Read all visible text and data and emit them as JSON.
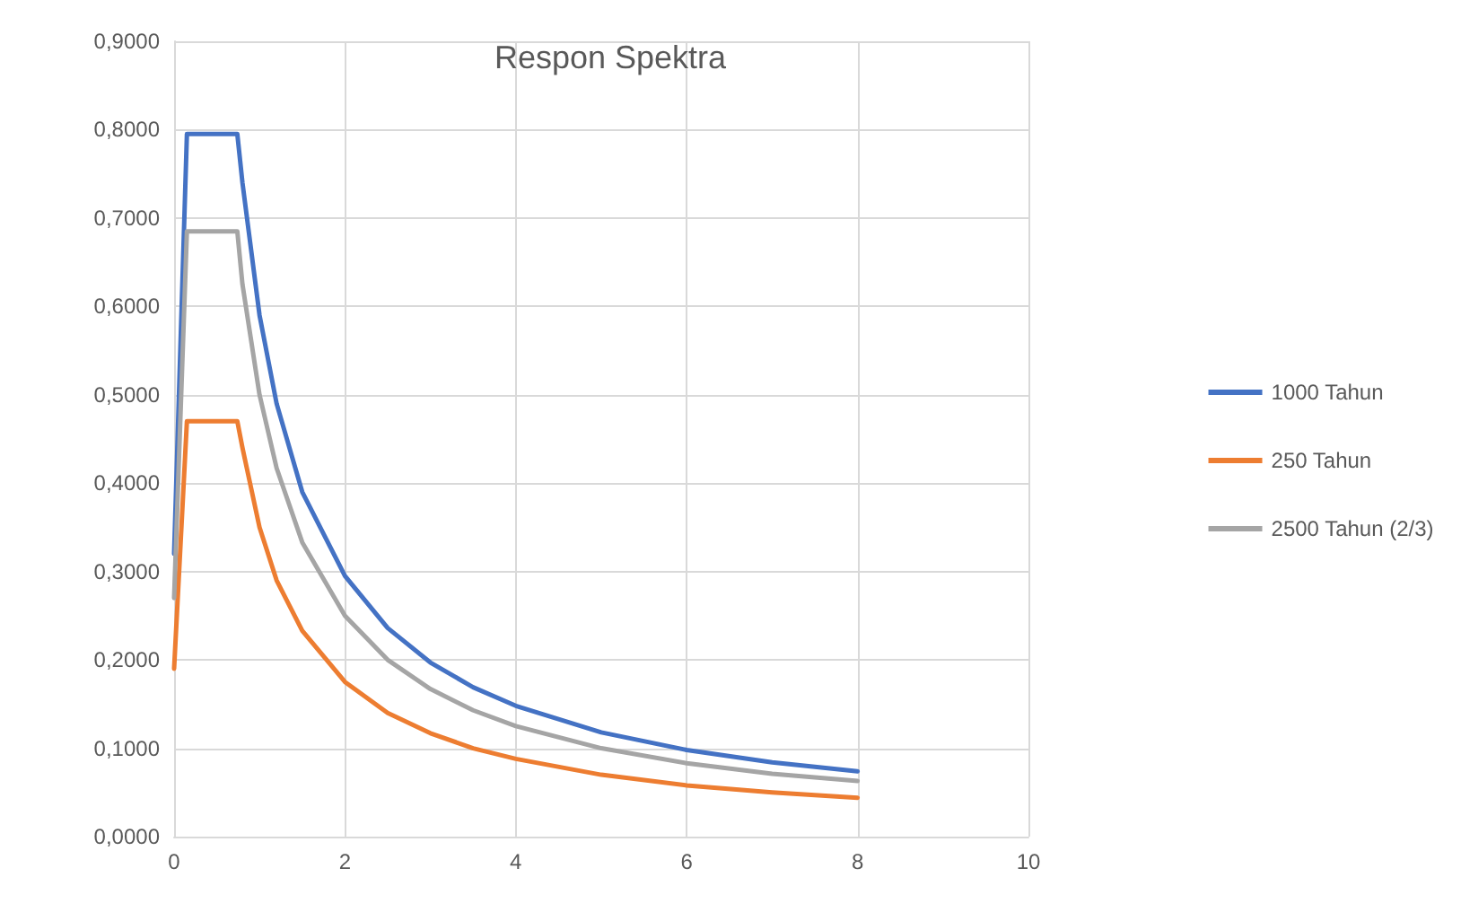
{
  "chart_data": {
    "type": "line",
    "title": "Respon Spektra",
    "x": [
      0,
      0.15,
      0.74,
      0.8,
      1,
      1.2,
      1.5,
      2,
      2.5,
      3,
      3.5,
      4,
      5,
      6,
      7,
      8
    ],
    "series": [
      {
        "name": "1000 Tahun",
        "color": "#4472c4",
        "values": [
          0.32,
          0.795,
          0.795,
          0.74,
          0.59,
          0.49,
          0.39,
          0.295,
          0.236,
          0.197,
          0.169,
          0.148,
          0.118,
          0.098,
          0.084,
          0.074
        ]
      },
      {
        "name": "250 Tahun",
        "color": "#ed7d31",
        "values": [
          0.19,
          0.47,
          0.47,
          0.44,
          0.35,
          0.29,
          0.233,
          0.175,
          0.14,
          0.117,
          0.1,
          0.088,
          0.07,
          0.058,
          0.05,
          0.044
        ]
      },
      {
        "name": "2500 Tahun (2/3)",
        "color": "#a5a5a5",
        "values": [
          0.27,
          0.685,
          0.685,
          0.625,
          0.5,
          0.417,
          0.333,
          0.25,
          0.2,
          0.167,
          0.143,
          0.125,
          0.1,
          0.083,
          0.071,
          0.063
        ]
      }
    ],
    "xlim": [
      0,
      10
    ],
    "xticks": [
      0,
      2,
      4,
      6,
      8,
      10
    ],
    "ylim": [
      0,
      0.9
    ],
    "yticks": [
      {
        "value": 0,
        "label": "0,0000"
      },
      {
        "value": 0.1,
        "label": "0,1000"
      },
      {
        "value": 0.2,
        "label": "0,2000"
      },
      {
        "value": 0.3,
        "label": "0,3000"
      },
      {
        "value": 0.4,
        "label": "0,4000"
      },
      {
        "value": 0.5,
        "label": "0,5000"
      },
      {
        "value": 0.6,
        "label": "0,6000"
      },
      {
        "value": 0.7,
        "label": "0,7000"
      },
      {
        "value": 0.8,
        "label": "0,8000"
      },
      {
        "value": 0.9,
        "label": "0,9000"
      }
    ],
    "grid": true,
    "legend": "right",
    "marker": "none",
    "line_style": "solid"
  }
}
